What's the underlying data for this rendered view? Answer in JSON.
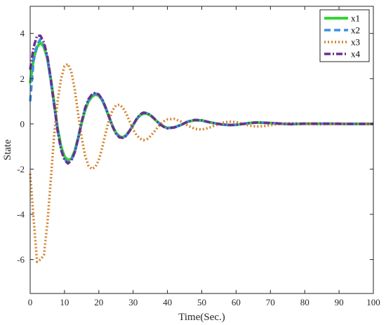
{
  "chart_data": {
    "type": "line",
    "title": "",
    "xlabel": "Time(Sec.)",
    "ylabel": "State",
    "xlim": [
      0,
      100
    ],
    "ylim": [
      -7.5,
      5.2
    ],
    "xticks": [
      0,
      10,
      20,
      30,
      40,
      50,
      60,
      70,
      80,
      90,
      100
    ],
    "yticks": [
      -6,
      -4,
      -2,
      0,
      2,
      4
    ],
    "grid": false,
    "legend_position": "top-right",
    "series": [
      {
        "name": "x1",
        "color": "#33d633",
        "style": "solid",
        "x": [
          0,
          1,
          2,
          3,
          4,
          5,
          6,
          7,
          8,
          9,
          10,
          11,
          12,
          13,
          14,
          15,
          16,
          17,
          18,
          19,
          20,
          21,
          22,
          23,
          24,
          25,
          26,
          27,
          28,
          29,
          30,
          31,
          32,
          33,
          34,
          35,
          36,
          37,
          38,
          39,
          40,
          42,
          44,
          46,
          48,
          50,
          52,
          54,
          56,
          58,
          60,
          62,
          64,
          66,
          68,
          70,
          72,
          74,
          76,
          78,
          80,
          84,
          88,
          92,
          96,
          100
        ],
        "y": [
          1.8,
          2.9,
          3.4,
          3.6,
          3.4,
          2.9,
          2.0,
          0.9,
          -0.2,
          -1.0,
          -1.45,
          -1.6,
          -1.55,
          -1.2,
          -0.6,
          0.05,
          0.6,
          1.0,
          1.2,
          1.3,
          1.25,
          1.05,
          0.7,
          0.3,
          -0.1,
          -0.4,
          -0.55,
          -0.6,
          -0.5,
          -0.3,
          -0.05,
          0.2,
          0.38,
          0.45,
          0.45,
          0.38,
          0.25,
          0.1,
          -0.02,
          -0.12,
          -0.18,
          -0.15,
          -0.04,
          0.1,
          0.16,
          0.15,
          0.08,
          0.02,
          -0.03,
          -0.05,
          -0.04,
          0.0,
          0.04,
          0.06,
          0.05,
          0.04,
          0.02,
          0.0,
          -0.01,
          0.0,
          0.01,
          0.01,
          0.01,
          0.0,
          0.0,
          0.0
        ]
      },
      {
        "name": "x2",
        "color": "#3d8fe6",
        "style": "dashed",
        "x": [
          0,
          1,
          2,
          3,
          4,
          5,
          6,
          7,
          8,
          9,
          10,
          11,
          12,
          13,
          14,
          15,
          16,
          17,
          18,
          19,
          20,
          21,
          22,
          23,
          24,
          25,
          26,
          27,
          28,
          29,
          30,
          31,
          32,
          33,
          34,
          35,
          36,
          37,
          38,
          39,
          40,
          42,
          44,
          46,
          48,
          50,
          52,
          54,
          56,
          58,
          60,
          62,
          64,
          66,
          68,
          70,
          72,
          74,
          76,
          78,
          80,
          84,
          88,
          92,
          96,
          100
        ],
        "y": [
          1.0,
          2.8,
          3.5,
          3.75,
          3.5,
          2.9,
          1.9,
          0.8,
          -0.3,
          -1.1,
          -1.55,
          -1.7,
          -1.6,
          -1.25,
          -0.65,
          0.05,
          0.65,
          1.05,
          1.25,
          1.35,
          1.28,
          1.08,
          0.72,
          0.3,
          -0.12,
          -0.42,
          -0.58,
          -0.62,
          -0.52,
          -0.32,
          -0.05,
          0.22,
          0.4,
          0.48,
          0.47,
          0.4,
          0.26,
          0.1,
          -0.03,
          -0.13,
          -0.19,
          -0.16,
          -0.04,
          0.1,
          0.17,
          0.16,
          0.08,
          0.02,
          -0.03,
          -0.05,
          -0.04,
          0.0,
          0.04,
          0.06,
          0.05,
          0.04,
          0.02,
          0.0,
          -0.01,
          0.0,
          0.01,
          0.01,
          0.01,
          0.0,
          0.0,
          0.0
        ]
      },
      {
        "name": "x3",
        "color": "#d4812a",
        "style": "dotted",
        "x": [
          0,
          1,
          2,
          3,
          4,
          5,
          6,
          7,
          8,
          9,
          10,
          11,
          12,
          13,
          14,
          15,
          16,
          17,
          18,
          19,
          20,
          21,
          22,
          23,
          24,
          25,
          26,
          27,
          28,
          29,
          30,
          31,
          32,
          33,
          34,
          35,
          36,
          37,
          38,
          39,
          40,
          42,
          44,
          46,
          48,
          50,
          52,
          54,
          56,
          58,
          60,
          62,
          64,
          66,
          68,
          70,
          72,
          74,
          76,
          78,
          80,
          84,
          88,
          92,
          96,
          100
        ],
        "y": [
          -2.2,
          -4.2,
          -6.1,
          -6.0,
          -5.8,
          -4.4,
          -2.5,
          -0.5,
          1.0,
          2.0,
          2.55,
          2.65,
          2.3,
          1.5,
          0.4,
          -0.6,
          -1.4,
          -1.85,
          -2.0,
          -1.9,
          -1.6,
          -1.05,
          -0.4,
          0.2,
          0.6,
          0.82,
          0.85,
          0.72,
          0.45,
          0.1,
          -0.25,
          -0.5,
          -0.65,
          -0.72,
          -0.68,
          -0.55,
          -0.38,
          -0.18,
          0.0,
          0.12,
          0.2,
          0.22,
          0.1,
          -0.08,
          -0.22,
          -0.25,
          -0.18,
          -0.06,
          0.05,
          0.1,
          0.08,
          0.0,
          -0.08,
          -0.12,
          -0.1,
          -0.06,
          -0.02,
          0.02,
          0.03,
          0.02,
          0.0,
          -0.02,
          -0.01,
          0.0,
          0.0,
          0.0
        ]
      },
      {
        "name": "x4",
        "color": "#6b2f8f",
        "style": "dashdot",
        "x": [
          0,
          1,
          2,
          3,
          4,
          5,
          6,
          7,
          8,
          9,
          10,
          11,
          12,
          13,
          14,
          15,
          16,
          17,
          18,
          19,
          20,
          21,
          22,
          23,
          24,
          25,
          26,
          27,
          28,
          29,
          30,
          31,
          32,
          33,
          34,
          35,
          36,
          37,
          38,
          39,
          40,
          42,
          44,
          46,
          48,
          50,
          52,
          54,
          56,
          58,
          60,
          62,
          64,
          66,
          68,
          70,
          72,
          74,
          76,
          78,
          80,
          84,
          88,
          92,
          96,
          100
        ],
        "y": [
          2.4,
          3.4,
          3.9,
          3.9,
          3.6,
          3.0,
          2.0,
          0.85,
          -0.3,
          -1.15,
          -1.6,
          -1.75,
          -1.62,
          -1.25,
          -0.62,
          0.08,
          0.7,
          1.1,
          1.3,
          1.38,
          1.3,
          1.08,
          0.72,
          0.3,
          -0.12,
          -0.44,
          -0.6,
          -0.62,
          -0.52,
          -0.3,
          -0.04,
          0.22,
          0.42,
          0.5,
          0.48,
          0.4,
          0.26,
          0.1,
          -0.04,
          -0.14,
          -0.2,
          -0.16,
          -0.04,
          0.11,
          0.18,
          0.16,
          0.08,
          0.02,
          -0.03,
          -0.05,
          -0.04,
          0.0,
          0.04,
          0.06,
          0.05,
          0.04,
          0.02,
          0.0,
          -0.01,
          0.0,
          0.01,
          0.01,
          0.01,
          0.0,
          0.0,
          0.0
        ]
      }
    ]
  }
}
